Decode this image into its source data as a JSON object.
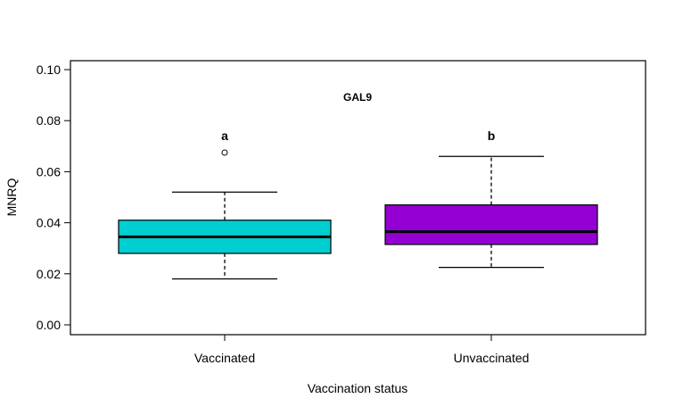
{
  "chart_data": {
    "type": "box",
    "title": "GAL9",
    "xlabel": "Vaccination status",
    "ylabel": "MNRQ",
    "ylim": [
      0.0,
      0.1
    ],
    "yticks": [
      "0.00",
      "0.02",
      "0.04",
      "0.06",
      "0.08",
      "0.10"
    ],
    "categories": [
      "Vaccinated",
      "Unvaccinated"
    ],
    "boxes": [
      {
        "category": "Vaccinated",
        "min": 0.018,
        "q1": 0.028,
        "median": 0.0345,
        "q3": 0.041,
        "max": 0.052,
        "outliers": [
          0.0675
        ],
        "group_letter": "a",
        "color": "#00CED1"
      },
      {
        "category": "Unvaccinated",
        "min": 0.0225,
        "q1": 0.0315,
        "median": 0.0365,
        "q3": 0.047,
        "max": 0.066,
        "outliers": [],
        "group_letter": "b",
        "color": "#9400D3"
      }
    ],
    "grid": false,
    "legend": "none"
  }
}
